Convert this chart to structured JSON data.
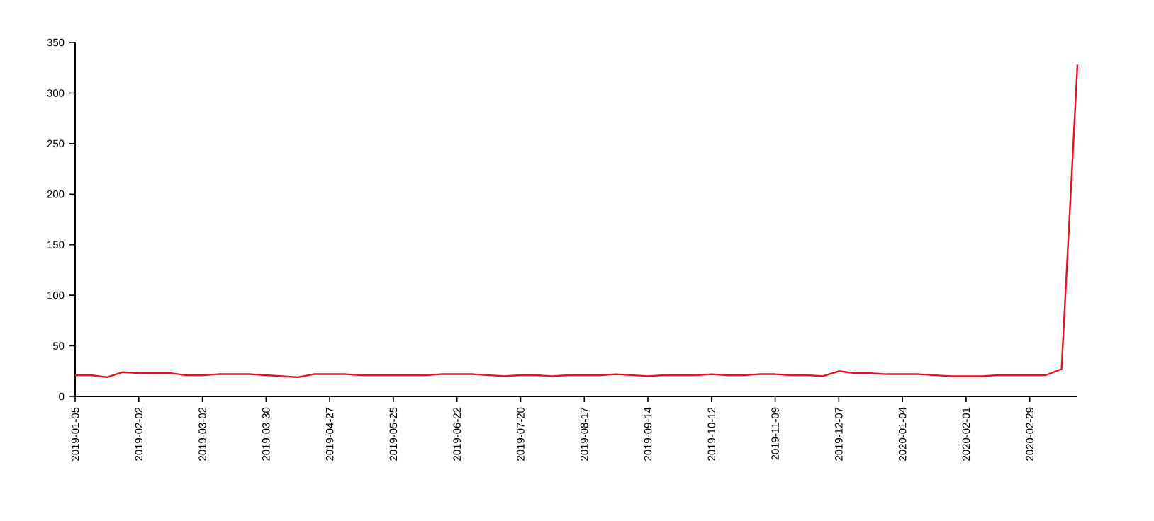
{
  "chart_data": {
    "type": "line",
    "x": [
      "2019-01-05",
      "2019-01-12",
      "2019-01-19",
      "2019-01-26",
      "2019-02-02",
      "2019-02-09",
      "2019-02-16",
      "2019-02-23",
      "2019-03-02",
      "2019-03-09",
      "2019-03-16",
      "2019-03-23",
      "2019-03-30",
      "2019-04-06",
      "2019-04-13",
      "2019-04-20",
      "2019-04-27",
      "2019-05-04",
      "2019-05-11",
      "2019-05-18",
      "2019-05-25",
      "2019-06-01",
      "2019-06-08",
      "2019-06-15",
      "2019-06-22",
      "2019-06-29",
      "2019-07-06",
      "2019-07-13",
      "2019-07-20",
      "2019-07-27",
      "2019-08-03",
      "2019-08-10",
      "2019-08-17",
      "2019-08-24",
      "2019-08-31",
      "2019-09-07",
      "2019-09-14",
      "2019-09-21",
      "2019-09-28",
      "2019-10-05",
      "2019-10-12",
      "2019-10-19",
      "2019-10-26",
      "2019-11-02",
      "2019-11-09",
      "2019-11-16",
      "2019-11-23",
      "2019-11-30",
      "2019-12-07",
      "2019-12-14",
      "2019-12-21",
      "2019-12-28",
      "2020-01-04",
      "2020-01-11",
      "2020-01-18",
      "2020-01-25",
      "2020-02-01",
      "2020-02-08",
      "2020-02-15",
      "2020-02-22",
      "2020-02-29",
      "2020-03-07",
      "2020-03-14",
      "2020-03-21"
    ],
    "series": [
      {
        "color": "#e8101e",
        "values": [
          21,
          21,
          19,
          24,
          23,
          23,
          23,
          21,
          21,
          22,
          22,
          22,
          21,
          20,
          19,
          22,
          22,
          22,
          21,
          21,
          21,
          21,
          21,
          22,
          22,
          22,
          21,
          20,
          21,
          21,
          20,
          21,
          21,
          21,
          22,
          21,
          20,
          21,
          21,
          21,
          22,
          21,
          21,
          22,
          22,
          21,
          21,
          20,
          25,
          23,
          23,
          22,
          22,
          22,
          21,
          20,
          20,
          20,
          21,
          21,
          21,
          21,
          27,
          328
        ]
      }
    ],
    "xlim": [
      "2019-01-05",
      "2020-03-21"
    ],
    "xticks": [
      "2019-01-05",
      "2019-02-02",
      "2019-03-02",
      "2019-03-30",
      "2019-04-27",
      "2019-05-25",
      "2019-06-22",
      "2019-07-20",
      "2019-08-17",
      "2019-09-14",
      "2019-10-12",
      "2019-11-09",
      "2019-12-07",
      "2020-01-04",
      "2020-02-01",
      "2020-02-29"
    ],
    "ylim": [
      0,
      350
    ],
    "yticks": [
      0,
      50,
      100,
      150,
      200,
      250,
      300,
      350
    ]
  }
}
